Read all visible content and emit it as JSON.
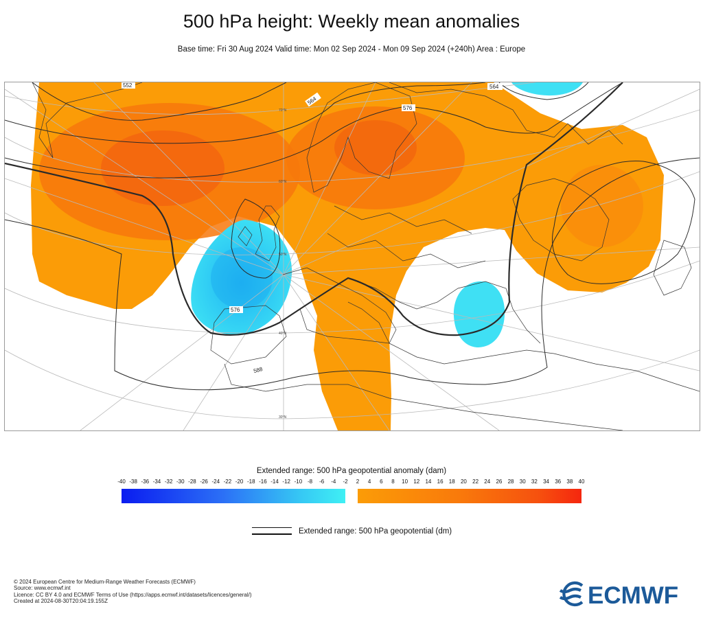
{
  "title": "500 hPa height: Weekly mean anomalies",
  "subtitle": "Base time: Fri 30 Aug 2024 Valid time: Mon 02 Sep 2024 - Mon 09 Sep 2024 (+240h) Area : Europe",
  "map": {
    "contour_labels": [
      "552",
      "564",
      "576",
      "564",
      "576",
      "588"
    ],
    "grid_labels": [
      "70°N",
      "60°N",
      "50°N",
      "40°N",
      "30°N"
    ]
  },
  "legend": {
    "title": "Extended range: 500 hPa geopotential anomaly (dam)",
    "ticks": [
      "-40",
      "-38",
      "-36",
      "-34",
      "-32",
      "-30",
      "-28",
      "-26",
      "-24",
      "-22",
      "-20",
      "-18",
      "-16",
      "-14",
      "-12",
      "-10",
      "-8",
      "-6",
      "-4",
      "-2",
      "2",
      "4",
      "6",
      "8",
      "10",
      "12",
      "14",
      "16",
      "18",
      "20",
      "22",
      "24",
      "26",
      "28",
      "30",
      "32",
      "34",
      "36",
      "38",
      "40"
    ],
    "line_label": "Extended range: 500 hPa geopotential (dm)"
  },
  "colors": {
    "negative_min": "#0a1cf0",
    "negative_max": "#3ff0f4",
    "positive_min": "#fb9c07",
    "positive_max": "#f5260e",
    "logo": "#1c5a99"
  },
  "footer": {
    "copyright": "© 2024 European Centre for Medium-Range Weather Forecasts (ECMWF)",
    "source": "Source: www.ecmwf.int",
    "licence": "Licence: CC BY 4.0 and ECMWF Terms of Use (https://apps.ecmwf.int/datasets/licences/general/)",
    "created": "Created at 2024-08-30T20:04:19.155Z"
  },
  "logo": {
    "text": "ECMWF"
  }
}
